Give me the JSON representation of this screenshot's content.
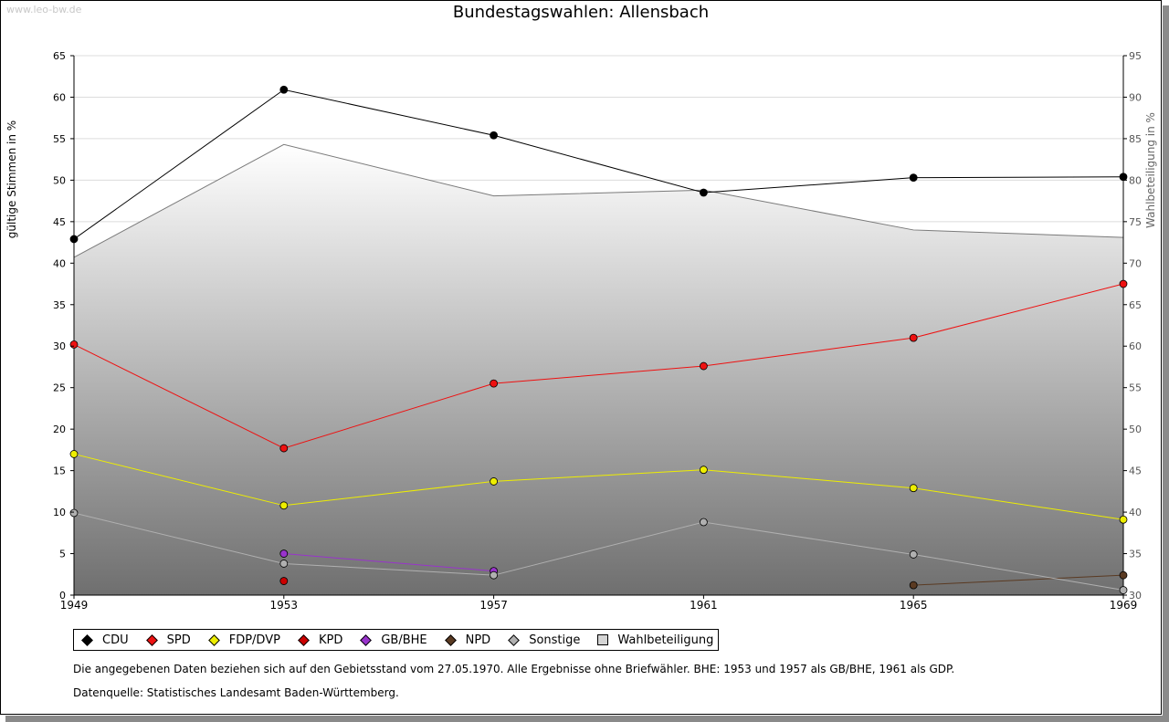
{
  "watermark": "www.leo-bw.de",
  "title": "Bundestagswahlen: Allensbach",
  "chart_data": {
    "type": "line",
    "title": "Bundestagswahlen: Allensbach",
    "ylabel": "gültige Stimmen in %",
    "y2label": "Wahlbeteiligung in %",
    "ylim": [
      0,
      65
    ],
    "y2lim": [
      30,
      95
    ],
    "yticks": [
      "0",
      "5",
      "10",
      "15",
      "20",
      "25",
      "30",
      "35",
      "40",
      "45",
      "50",
      "55",
      "60",
      "65"
    ],
    "y2ticks": [
      "30",
      "35",
      "40",
      "45",
      "50",
      "55",
      "60",
      "65",
      "70",
      "75",
      "80",
      "85",
      "90",
      "95"
    ],
    "categories": [
      "1949",
      "1953",
      "1957",
      "1961",
      "1965",
      "1969"
    ],
    "grid": true,
    "area": {
      "name": "Wahlbeteiligung",
      "axis": "right",
      "values": [
        70.7,
        84.3,
        78.1,
        78.8,
        74.0,
        73.1
      ],
      "color": "#7a7a7a"
    },
    "series": [
      {
        "name": "CDU",
        "color": "#000000",
        "values": [
          42.9,
          60.9,
          55.4,
          48.5,
          50.3,
          50.4
        ]
      },
      {
        "name": "SPD",
        "color": "#ee1111",
        "values": [
          30.2,
          17.7,
          25.5,
          27.6,
          31.0,
          37.5
        ]
      },
      {
        "name": "FDP/DVP",
        "color": "#eeee00",
        "values": [
          17.0,
          10.8,
          13.7,
          15.1,
          12.9,
          9.1
        ]
      },
      {
        "name": "KPD",
        "color": "#cc0000",
        "values": [
          null,
          1.7,
          null,
          null,
          null,
          null
        ]
      },
      {
        "name": "GB/BHE",
        "color": "#9933cc",
        "values": [
          null,
          5.0,
          2.9,
          null,
          null,
          null
        ]
      },
      {
        "name": "NPD",
        "color": "#5a3a22",
        "values": [
          null,
          null,
          null,
          null,
          1.2,
          2.4
        ]
      },
      {
        "name": "Sonstige",
        "color": "#b0b0b0",
        "values": [
          9.9,
          3.8,
          2.4,
          8.8,
          4.9,
          0.6
        ]
      }
    ],
    "legend_position": "bottom-left"
  },
  "legend": {
    "items": [
      {
        "label": "CDU",
        "color": "#000000"
      },
      {
        "label": "SPD",
        "color": "#ee1111"
      },
      {
        "label": "FDP/DVP",
        "color": "#eeee00"
      },
      {
        "label": "KPD",
        "color": "#cc0000"
      },
      {
        "label": "GB/BHE",
        "color": "#9933cc"
      },
      {
        "label": "NPD",
        "color": "#5a3a22"
      },
      {
        "label": "Sonstige",
        "color": "#b0b0b0"
      }
    ],
    "area_label": "Wahlbeteiligung"
  },
  "notes": {
    "line1": "Die angegebenen Daten beziehen sich auf den Gebietsstand vom 27.05.1970. Alle Ergebnisse ohne Briefwähler. BHE: 1953 und 1957 als GB/BHE, 1961 als GDP.",
    "line2": "Datenquelle: Statistisches Landesamt Baden-Württemberg."
  }
}
